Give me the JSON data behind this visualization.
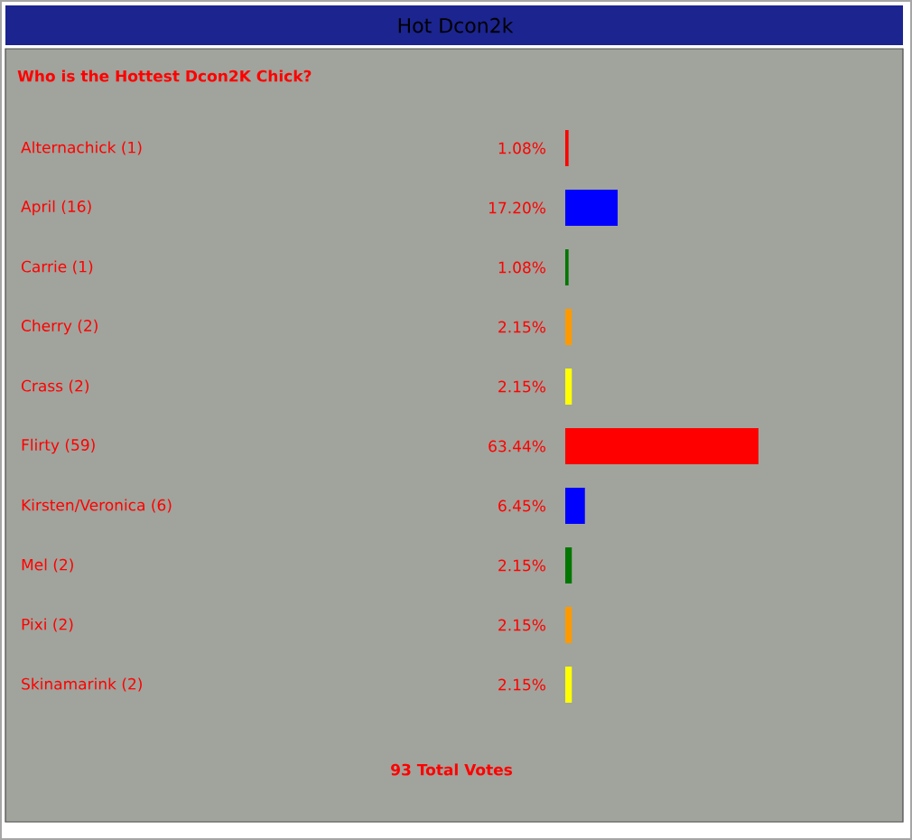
{
  "chart_data": {
    "type": "bar",
    "orientation": "horizontal",
    "title": "Hot Dcon2k",
    "subtitle": "Who is the Hottest Dcon2K Chick?",
    "categories": [
      "Alternachick (1)",
      "April (16)",
      "Carrie (1)",
      "Cherry (2)",
      "Crass (2)",
      "Flirty (59)",
      "Kirsten/Veronica (6)",
      "Mel (2)",
      "Pixi (2)",
      "Skinamarink (2)"
    ],
    "values": [
      1.08,
      17.2,
      1.08,
      2.15,
      2.15,
      63.44,
      6.45,
      2.15,
      2.15,
      2.15
    ],
    "value_labels": [
      "1.08%",
      "17.20%",
      "1.08%",
      "2.15%",
      "2.15%",
      "63.44%",
      "6.45%",
      "2.15%",
      "2.15%",
      "2.15%"
    ],
    "colors": [
      "#ff0000",
      "#0000ff",
      "#007700",
      "#ff9900",
      "#ffff00",
      "#ff0000",
      "#0000ff",
      "#007700",
      "#ff9900",
      "#ffff00"
    ],
    "annotations": [
      "93 Total Votes"
    ]
  }
}
